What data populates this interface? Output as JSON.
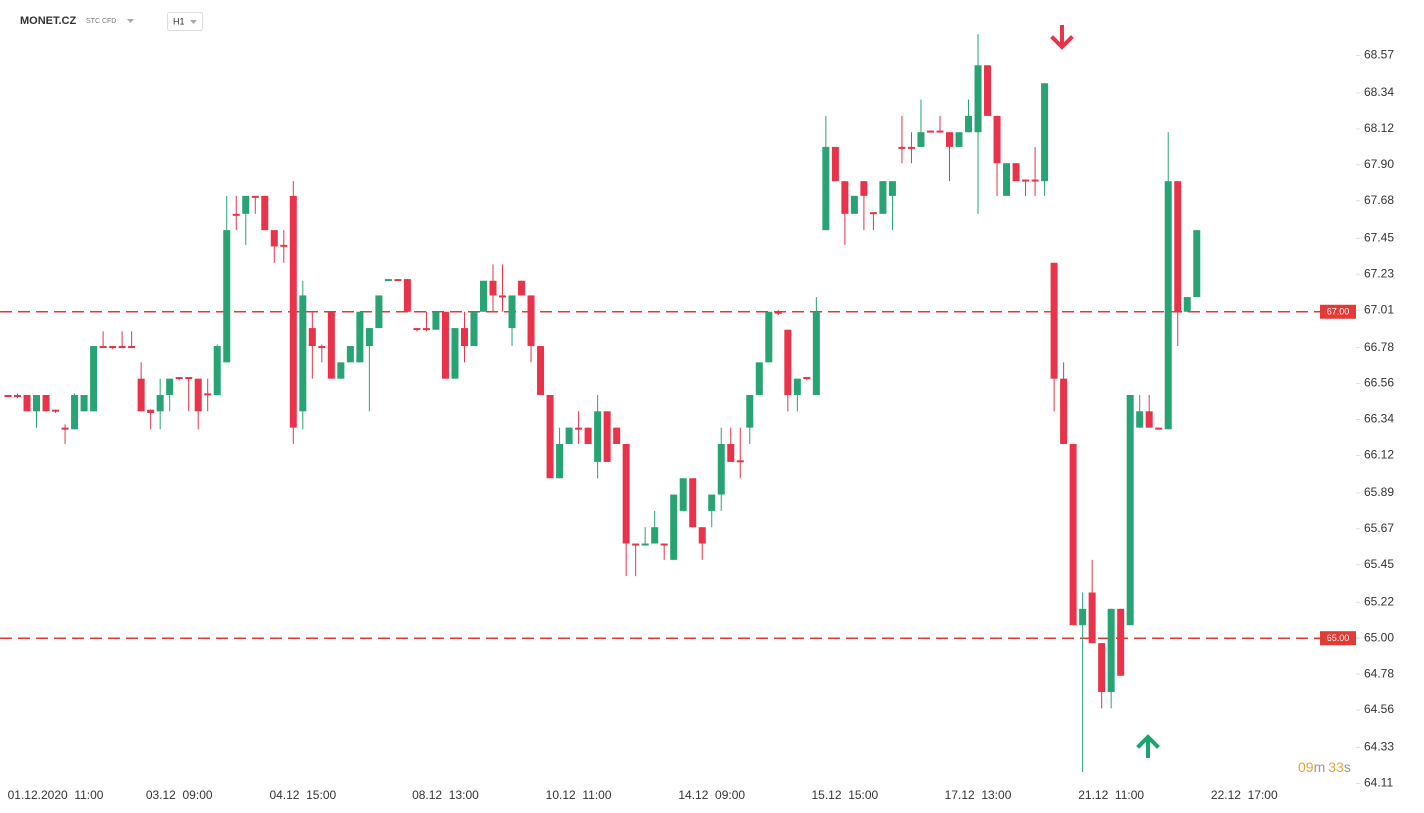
{
  "header": {
    "symbol": "MONET.CZ",
    "instrument_type": "STC CFD",
    "timeframe": "H1"
  },
  "countdown": {
    "minutes": "09",
    "minutes_unit": "m",
    "seconds": "33",
    "seconds_unit": "s"
  },
  "chart_data": {
    "type": "candlestick",
    "up_color": "#27a374",
    "down_color": "#e8334a",
    "ylim": [
      64.07,
      68.91
    ],
    "yticks": [
      68.57,
      68.34,
      68.12,
      {
        "value": 67.9,
        "label": "67.90"
      },
      67.68,
      67.45,
      67.23,
      67.01,
      66.78,
      66.56,
      66.34,
      66.12,
      65.89,
      65.67,
      65.45,
      65.22,
      {
        "value": 65,
        "label": "65.00"
      },
      64.78,
      64.56,
      64.33,
      64.11
    ],
    "levels": [
      {
        "value": 67,
        "label": "67.00",
        "color": "#e53935"
      },
      {
        "value": 65,
        "label": "65.00",
        "color": "#e53935"
      }
    ],
    "categories": [
      null,
      null,
      null,
      null,
      null,
      "01.12.2020  11:00",
      null,
      null,
      null,
      null,
      null,
      null,
      null,
      null,
      null,
      null,
      null,
      null,
      "03.12  09:00",
      null,
      null,
      null,
      null,
      null,
      null,
      null,
      null,
      null,
      null,
      null,
      null,
      "04.12  15:00",
      null,
      null,
      null,
      null,
      null,
      null,
      null,
      null,
      null,
      null,
      null,
      null,
      null,
      null,
      "08.12  13:00",
      null,
      null,
      null,
      null,
      null,
      null,
      null,
      null,
      null,
      null,
      null,
      null,
      null,
      "10.12  11:00",
      null,
      null,
      null,
      null,
      null,
      null,
      null,
      null,
      null,
      null,
      null,
      null,
      null,
      "14.12  09:00",
      null,
      null,
      null,
      null,
      null,
      null,
      null,
      null,
      null,
      null,
      null,
      null,
      null,
      "15.12  15:00",
      null,
      null,
      null,
      null,
      null,
      null,
      null,
      null,
      null,
      null,
      null,
      null,
      null,
      "17.12  13:00",
      null,
      null,
      null,
      null,
      null,
      null,
      null,
      null,
      null,
      null,
      null,
      null,
      null,
      "21.12  11:00",
      null,
      null,
      null,
      null,
      null,
      null,
      null,
      null,
      null,
      null,
      null,
      null,
      null,
      "22.12  17:00"
    ],
    "open": [
      66.49,
      66.49,
      66.49,
      66.39,
      66.49,
      66.4,
      66.29,
      66.28,
      66.39,
      66.39,
      66.79,
      66.79,
      66.79,
      66.79,
      66.59,
      66.4,
      66.39,
      66.49,
      66.6,
      66.6,
      66.59,
      66.5,
      66.49,
      66.69,
      67.6,
      67.6,
      67.71,
      67.71,
      67.5,
      67.41,
      67.71,
      66.39,
      66.9,
      66.79,
      67.0,
      66.59,
      66.69,
      66.69,
      66.79,
      66.9,
      67.19,
      67.2,
      67.2,
      66.9,
      66.9,
      66.89,
      67.0,
      66.59,
      66.9,
      66.79,
      67.0,
      67.19,
      67.1,
      66.9,
      67.19,
      67.1,
      66.79,
      66.49,
      65.98,
      66.19,
      66.29,
      66.29,
      66.08,
      66.39,
      66.29,
      66.19,
      65.58,
      65.57,
      65.58,
      65.58,
      65.48,
      65.78,
      65.98,
      65.68,
      65.78,
      65.88,
      66.19,
      66.09,
      66.29,
      66.49,
      66.69,
      67.0,
      66.89,
      66.49,
      66.6,
      66.49,
      67.5,
      68.01,
      67.8,
      67.6,
      67.8,
      67.61,
      67.6,
      67.71,
      68.01,
      68.01,
      68.01,
      68.11,
      68.11,
      68.1,
      68.01,
      68.1,
      68.1,
      68.51,
      68.2,
      67.71,
      67.91,
      67.81,
      67.81,
      67.8,
      67.3,
      66.59,
      66.19,
      65.08,
      65.28,
      64.97,
      64.67,
      65.18,
      65.08,
      66.29,
      66.39,
      66.29,
      66.28,
      67.8,
      67.0,
      67.09,
      null,
      null,
      null,
      null,
      null
    ],
    "high": [
      66.49,
      66.5,
      66.49,
      66.49,
      66.49,
      66.4,
      66.31,
      66.5,
      66.49,
      66.79,
      66.88,
      66.79,
      66.88,
      66.88,
      66.69,
      66.4,
      66.59,
      66.59,
      66.6,
      66.6,
      66.59,
      66.59,
      66.8,
      67.71,
      67.71,
      67.71,
      67.71,
      67.71,
      67.5,
      67.5,
      67.8,
      67.19,
      67.0,
      66.8,
      67.0,
      66.69,
      66.79,
      67.0,
      66.9,
      67.1,
      67.2,
      67.2,
      67.2,
      66.9,
      67.0,
      67.0,
      67.0,
      66.9,
      67.0,
      67.0,
      67.19,
      67.29,
      67.29,
      67.1,
      67.19,
      67.1,
      66.79,
      66.49,
      66.29,
      66.29,
      66.39,
      66.29,
      66.49,
      66.39,
      66.29,
      66.19,
      65.58,
      65.68,
      65.78,
      65.58,
      65.88,
      65.98,
      65.98,
      65.68,
      65.88,
      66.29,
      66.29,
      66.29,
      66.49,
      66.69,
      67.0,
      67.01,
      66.89,
      66.59,
      66.6,
      67.09,
      68.2,
      68.01,
      67.8,
      67.71,
      67.8,
      67.61,
      67.8,
      67.8,
      68.2,
      68.1,
      68.3,
      68.11,
      68.2,
      68.1,
      68.1,
      68.3,
      68.7,
      68.51,
      68.2,
      67.91,
      67.91,
      67.81,
      68.01,
      68.4,
      67.3,
      66.69,
      66.19,
      65.28,
      65.48,
      64.97,
      65.18,
      65.18,
      66.49,
      66.49,
      66.49,
      66.29,
      68.1,
      67.8,
      67.09,
      67.5,
      null,
      null,
      null,
      null,
      null
    ],
    "low": [
      66.48,
      66.47,
      66.39,
      66.29,
      66.39,
      66.38,
      66.19,
      66.28,
      66.39,
      66.39,
      66.78,
      66.77,
      66.78,
      66.78,
      66.39,
      66.28,
      66.28,
      66.39,
      66.58,
      66.39,
      66.28,
      66.39,
      66.49,
      66.69,
      67.5,
      67.41,
      67.6,
      67.5,
      67.3,
      67.3,
      66.19,
      66.28,
      66.59,
      66.69,
      66.59,
      66.59,
      66.69,
      66.69,
      66.39,
      66.9,
      67.19,
      67.19,
      67.0,
      66.88,
      66.88,
      66.89,
      66.59,
      66.59,
      66.69,
      66.79,
      67.0,
      67.0,
      67.0,
      66.79,
      67.1,
      66.69,
      66.49,
      65.98,
      65.98,
      66.19,
      66.19,
      66.19,
      65.98,
      66.08,
      66.19,
      65.38,
      65.38,
      65.57,
      65.58,
      65.48,
      65.48,
      65.78,
      65.68,
      65.48,
      65.68,
      65.78,
      66.08,
      65.98,
      66.19,
      66.49,
      66.69,
      66.98,
      66.39,
      66.39,
      66.58,
      66.49,
      67.5,
      67.8,
      67.41,
      67.6,
      67.5,
      67.5,
      67.6,
      67.5,
      67.91,
      67.91,
      68.01,
      68.1,
      68.1,
      67.8,
      68.01,
      68.1,
      67.6,
      68.2,
      67.71,
      67.71,
      67.8,
      67.71,
      67.71,
      67.71,
      66.39,
      66.19,
      65.08,
      64.18,
      64.97,
      64.57,
      64.57,
      64.77,
      65.08,
      66.29,
      66.29,
      66.28,
      66.28,
      66.79,
      67.0,
      67.09,
      null,
      null,
      null,
      null,
      null
    ],
    "close": [
      66.48,
      66.48,
      66.39,
      66.49,
      66.39,
      66.39,
      66.28,
      66.49,
      66.49,
      66.79,
      66.78,
      66.78,
      66.78,
      66.78,
      66.39,
      66.38,
      66.49,
      66.59,
      66.59,
      66.59,
      66.39,
      66.49,
      66.79,
      67.5,
      67.59,
      67.71,
      67.7,
      67.5,
      67.4,
      67.4,
      66.29,
      67.1,
      66.79,
      66.78,
      66.59,
      66.69,
      66.79,
      67.0,
      66.9,
      67.1,
      67.2,
      67.19,
      67.0,
      66.89,
      66.89,
      67.0,
      66.59,
      66.9,
      66.79,
      67.0,
      67.19,
      67.1,
      67.09,
      67.1,
      67.1,
      66.79,
      66.49,
      65.98,
      66.19,
      66.29,
      66.28,
      66.19,
      66.39,
      66.08,
      66.19,
      65.58,
      65.57,
      65.58,
      65.68,
      65.57,
      65.88,
      65.98,
      65.68,
      65.58,
      65.88,
      66.19,
      66.08,
      66.08,
      66.49,
      66.69,
      67.0,
      66.99,
      66.49,
      66.59,
      66.59,
      67.0,
      68.01,
      67.8,
      67.6,
      67.71,
      67.71,
      67.6,
      67.8,
      67.8,
      68.0,
      68.0,
      68.1,
      68.1,
      68.1,
      68.01,
      68.1,
      68.2,
      68.51,
      68.2,
      67.91,
      67.91,
      67.8,
      67.8,
      67.8,
      68.4,
      66.59,
      66.19,
      65.08,
      65.18,
      64.97,
      64.67,
      65.18,
      64.77,
      66.49,
      66.39,
      66.29,
      66.28,
      67.8,
      67.0,
      67.09,
      67.5,
      null,
      null,
      null,
      null,
      null
    ]
  }
}
